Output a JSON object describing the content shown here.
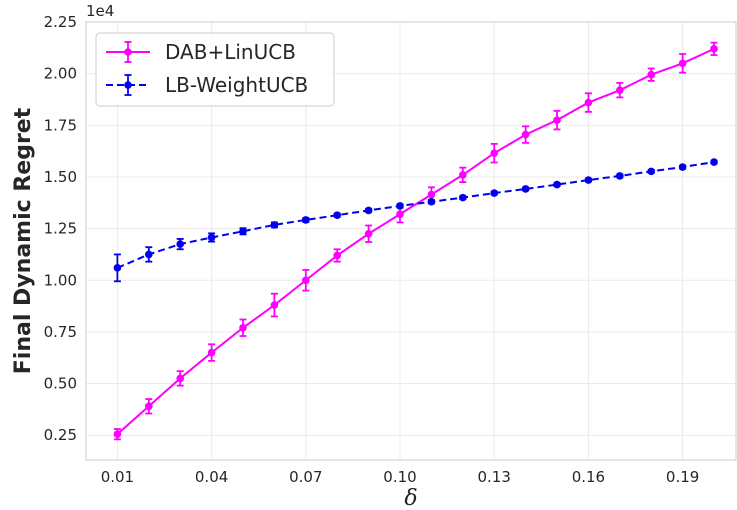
{
  "chart_data": {
    "type": "line",
    "xlabel": "δ",
    "ylabel": "Final Dynamic Regret",
    "y_scale_label": "1e4",
    "x_ticks": [
      "0.01",
      "0.04",
      "0.07",
      "0.10",
      "0.13",
      "0.16",
      "0.19"
    ],
    "y_ticks": [
      "0.25",
      "0.50",
      "0.75",
      "1.00",
      "1.25",
      "1.50",
      "1.75",
      "2.00",
      "2.25"
    ],
    "xlim": [
      -0.0,
      0.207
    ],
    "ylim": [
      0.13,
      2.25
    ],
    "grid": true,
    "legend_position": "top-left",
    "x": [
      0.01,
      0.02,
      0.03,
      0.04,
      0.05,
      0.06,
      0.07,
      0.08,
      0.09,
      0.1,
      0.11,
      0.12,
      0.13,
      0.14,
      0.15,
      0.16,
      0.17,
      0.18,
      0.19,
      0.2
    ],
    "series": [
      {
        "name": "DAB+LinUCB",
        "color": "#ff00ff",
        "style": "solid",
        "values": [
          0.255,
          0.39,
          0.525,
          0.65,
          0.77,
          0.88,
          1.0,
          1.12,
          1.225,
          1.32,
          1.415,
          1.51,
          1.615,
          1.705,
          1.775,
          1.86,
          1.92,
          1.995,
          2.05,
          2.12
        ],
        "errors": [
          0.025,
          0.035,
          0.035,
          0.04,
          0.04,
          0.055,
          0.05,
          0.03,
          0.04,
          0.04,
          0.035,
          0.035,
          0.045,
          0.04,
          0.045,
          0.045,
          0.035,
          0.03,
          0.045,
          0.03
        ]
      },
      {
        "name": "LB-WeightUCB",
        "color": "#0000ee",
        "style": "dashed",
        "values": [
          1.06,
          1.125,
          1.175,
          1.207,
          1.237,
          1.268,
          1.292,
          1.315,
          1.338,
          1.36,
          1.38,
          1.4,
          1.422,
          1.442,
          1.463,
          1.485,
          1.505,
          1.527,
          1.548,
          1.572
        ],
        "errors": [
          0.065,
          0.035,
          0.025,
          0.02,
          0.015,
          0.012,
          0.01,
          0.008,
          0.008,
          0.008,
          0.008,
          0.007,
          0.007,
          0.007,
          0.007,
          0.007,
          0.007,
          0.007,
          0.007,
          0.007
        ]
      }
    ]
  }
}
